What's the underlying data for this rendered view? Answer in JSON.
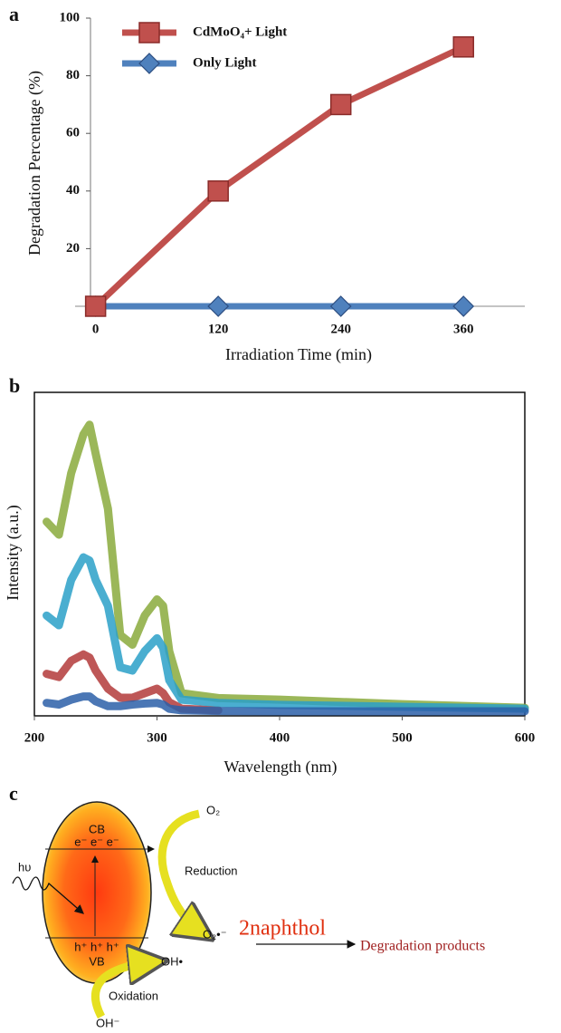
{
  "chart_data": [
    {
      "type": "line",
      "label": "a",
      "y_label": "Degradation Percentage (%)",
      "x_label": "Irradiation Time (min)",
      "x": [
        0,
        120,
        240,
        360
      ],
      "xlim": [
        -5,
        420
      ],
      "xticks": [
        0,
        120,
        240,
        360
      ],
      "ylim": [
        0,
        100
      ],
      "yticks": [
        20,
        40,
        60,
        80,
        100
      ],
      "legend": "upper left",
      "series": [
        {
          "name": "CdMoO₄+ Light",
          "color": "#c0504d",
          "marker": "square",
          "values": [
            0,
            40,
            70,
            90
          ]
        },
        {
          "name": "Only Light",
          "color": "#4f81bd",
          "marker": "diamond",
          "values": [
            0,
            0,
            0,
            0
          ]
        }
      ]
    },
    {
      "type": "line",
      "label": "b",
      "y_label": "Intensity (a.u.)",
      "x_label": "Wavelength (nm)",
      "frame": true,
      "x": [
        210,
        220,
        230,
        240,
        245,
        250,
        260,
        270,
        280,
        290,
        300,
        305,
        310,
        320,
        350,
        400,
        500,
        600
      ],
      "xlim": [
        200,
        600
      ],
      "xticks": [
        200,
        300,
        400,
        500,
        600
      ],
      "ylim": [
        0,
        1
      ],
      "series": [
        {
          "color": "#8aaa3c",
          "values": [
            0.6,
            0.56,
            0.75,
            0.87,
            0.9,
            0.81,
            0.64,
            0.25,
            0.22,
            0.31,
            0.36,
            0.34,
            0.2,
            0.07,
            0.055,
            0.05,
            0.036,
            0.025
          ]
        },
        {
          "color": "#b33a3a",
          "values": [
            0.13,
            0.12,
            0.17,
            0.19,
            0.18,
            0.14,
            0.084,
            0.056,
            0.056,
            0.07,
            0.084,
            0.07,
            0.042,
            0.022,
            0.017,
            null,
            null,
            null
          ]
        },
        {
          "color": "#2aa0c8",
          "values": [
            0.31,
            0.28,
            0.42,
            0.49,
            0.48,
            0.42,
            0.34,
            0.15,
            0.14,
            0.2,
            0.24,
            0.21,
            0.11,
            0.05,
            0.04,
            0.034,
            0.028,
            0.022
          ]
        },
        {
          "color": "#2b5fa8",
          "values": [
            0.04,
            0.035,
            0.05,
            0.06,
            0.06,
            0.045,
            0.03,
            0.03,
            0.035,
            0.038,
            0.04,
            0.035,
            0.022,
            0.017,
            0.015,
            0.014,
            0.014,
            0.014
          ]
        }
      ]
    }
  ],
  "diagram": {
    "label": "c",
    "cb": "CB",
    "electrons": "e⁻ e⁻ e⁻",
    "light": "hυ",
    "holes": "h⁺ h⁺ h⁺",
    "vb": "VB",
    "oxygen": "O₂",
    "reduction": "Reduction",
    "superoxide": "O₂•⁻",
    "pollutant": "2naphthol",
    "products": "Degradation products",
    "hydroxyl_radical": "OH•",
    "oxidation": "Oxidation",
    "hydroxide": "OH⁻"
  }
}
